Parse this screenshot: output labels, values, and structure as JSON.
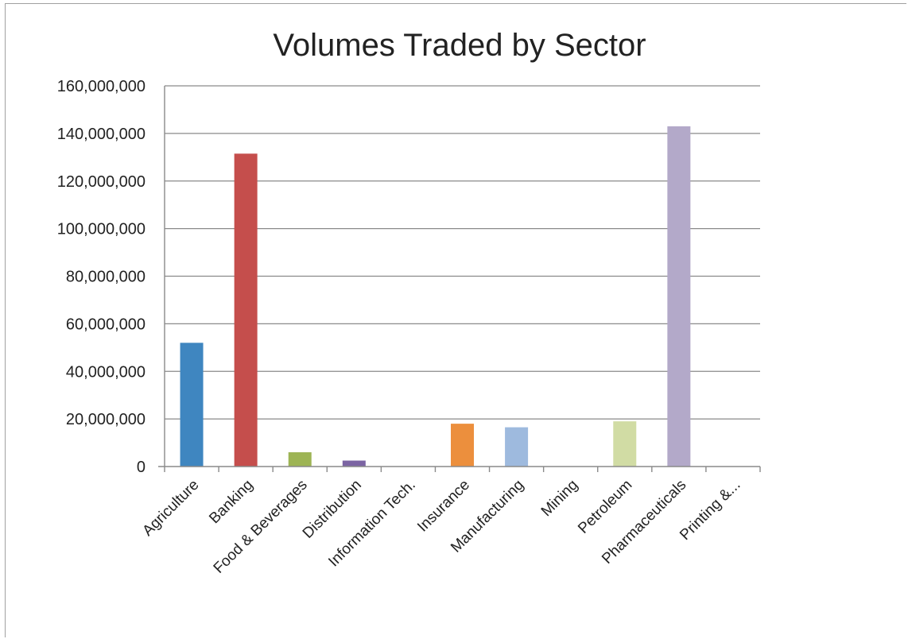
{
  "chart_data": {
    "type": "bar",
    "title": "Volumes Traded by Sector",
    "xlabel": "",
    "ylabel": "",
    "categories": [
      "Agriculture",
      "Banking",
      "Food & Beverages",
      "Distribution",
      "Information Tech.",
      "Insurance",
      "Manufacturing",
      "Mining",
      "Petroleum",
      "Pharmaceuticals",
      "Printing &..."
    ],
    "values": [
      52000000,
      131500000,
      6000000,
      2500000,
      0,
      18000000,
      16500000,
      0,
      19000000,
      143000000,
      0
    ],
    "colors": [
      "#3f86c0",
      "#c54e4c",
      "#9db454",
      "#7b64a3",
      "#4eb0c8",
      "#ec8f3d",
      "#9ebade",
      "#e8a3a2",
      "#d1dca4",
      "#b3a9c9",
      "#a8d1dc"
    ],
    "ylim": [
      0,
      160000000
    ],
    "yticks": [
      "0",
      "20,000,000",
      "40,000,000",
      "60,000,000",
      "80,000,000",
      "100,000,000",
      "120,000,000",
      "140,000,000",
      "160,000,000"
    ],
    "grid": true,
    "legend": "none"
  }
}
